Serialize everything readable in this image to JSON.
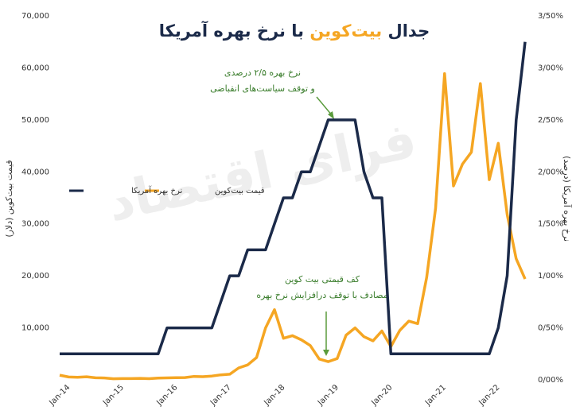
{
  "chart_data": {
    "type": "line",
    "title_parts": [
      "جدال",
      "بیت‌کوین",
      "با نرخ بهره آمریکا"
    ],
    "ylabel": "قیمت بیت‌کوین (دلار)",
    "y2label": "نرخ بهره آمریکا (درصد)",
    "watermark": "فرای اقتصاد",
    "annotations": [
      {
        "lines": [
          "نرخ بهره ۲/۵ درصدی",
          "و توقف سیاست‌های انقباضی"
        ]
      },
      {
        "lines": [
          "کف قیمتی بیت کوین",
          "مصادف با توقف درافزایش نرخ بهره"
        ]
      }
    ],
    "legend": "top-center",
    "categories": [
      "Jan-14",
      null,
      null,
      null,
      null,
      null,
      "Jan-15",
      null,
      null,
      null,
      null,
      null,
      "Jan-16",
      null,
      null,
      null,
      null,
      null,
      "Jan-17",
      null,
      null,
      null,
      null,
      null,
      "Jan-18",
      null,
      null,
      null,
      null,
      null,
      "Jan-19",
      null,
      null,
      null,
      null,
      null,
      "Jan-20",
      null,
      null,
      null,
      null,
      null,
      "Jan-21",
      null,
      null,
      null,
      null,
      null,
      "Jan-22",
      null,
      null,
      null,
      null
    ],
    "series": [
      {
        "name": "قیمت بیت‌کوین",
        "color": "#f5a623",
        "values": [
          900,
          550,
          500,
          600,
          400,
          370,
          220,
          250,
          240,
          285,
          235,
          330,
          380,
          415,
          450,
          660,
          610,
          740,
          970,
          1080,
          2300,
          2870,
          4300,
          10000,
          13500,
          8000,
          8500,
          7700,
          6600,
          4000,
          3500,
          4100,
          8600,
          10000,
          8300,
          7500,
          9400,
          6400,
          9500,
          11300,
          10800,
          19700,
          33000,
          58900,
          37300,
          41500,
          43800,
          57000,
          38500,
          45500,
          31800,
          23300,
          19400
        ]
      },
      {
        "name": "نرخ بهره آمریکا",
        "color": "#1b2a49",
        "axis": "y2",
        "values": [
          0.25,
          0.25,
          0.25,
          0.25,
          0.25,
          0.25,
          0.25,
          0.25,
          0.25,
          0.25,
          0.25,
          0.25,
          0.5,
          0.5,
          0.5,
          0.5,
          0.5,
          0.5,
          0.75,
          1.0,
          1.0,
          1.25,
          1.25,
          1.25,
          1.5,
          1.75,
          1.75,
          2.0,
          2.0,
          2.25,
          2.5,
          2.5,
          2.5,
          2.5,
          2.0,
          1.75,
          1.75,
          0.25,
          0.25,
          0.25,
          0.25,
          0.25,
          0.25,
          0.25,
          0.25,
          0.25,
          0.25,
          0.25,
          0.25,
          0.5,
          1.0,
          2.5,
          3.25
        ]
      }
    ],
    "ylim": [
      0,
      70000
    ],
    "yticks": [
      {
        "value": 10000,
        "label": "10,000"
      },
      {
        "value": 20000,
        "label": "20,000"
      },
      {
        "value": 30000,
        "label": "30,000"
      },
      {
        "value": 40000,
        "label": "40,000"
      },
      {
        "value": 50000,
        "label": "50,000"
      },
      {
        "value": 60000,
        "label": "60,000"
      },
      {
        "value": 70000,
        "label": "70,000"
      }
    ],
    "y2lim": [
      0,
      3.5
    ],
    "y2ticks": [
      {
        "value": 0,
        "label": "0/00%"
      },
      {
        "value": 0.5,
        "label": "0/50%"
      },
      {
        "value": 1,
        "label": "1/00%"
      },
      {
        "value": 1.5,
        "label": "1/50%"
      },
      {
        "value": 2,
        "label": "2/00%"
      },
      {
        "value": 2.5,
        "label": "2/50%"
      },
      {
        "value": 3,
        "label": "3/00%"
      },
      {
        "value": 3.5,
        "label": "3/50%"
      }
    ],
    "grid": false
  }
}
